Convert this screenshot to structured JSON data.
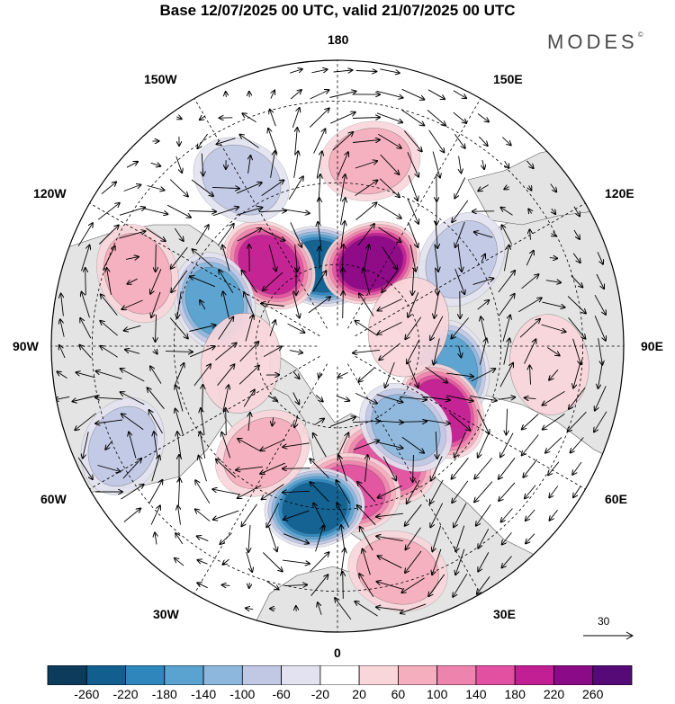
{
  "title": "Base 12/07/2025 00 UTC, valid 21/07/2025 00 UTC",
  "brand": "MODES",
  "brand_mark": "©",
  "longitude_labels": {
    "top": "180",
    "bottom": "0",
    "left": "90W",
    "right": "90E",
    "w150": "150W",
    "w120": "120W",
    "w60": "60W",
    "w30": "30W",
    "e150": "150E",
    "e120": "120E",
    "e60": "60E",
    "e30": "30E"
  },
  "reference_vector": "30",
  "colorbar": {
    "colors": [
      "#0d3b5c",
      "#125f8f",
      "#2e86bd",
      "#5aa2cf",
      "#8db7dc",
      "#c0c8e4",
      "#e3e2f0",
      "#ffffff",
      "#f9d6da",
      "#f4aebd",
      "#ee84ae",
      "#e251a1",
      "#c21f94",
      "#8b0a87",
      "#560a77"
    ],
    "labels": [
      "-260",
      "-220",
      "-180",
      "-140",
      "-100",
      "-60",
      "-20",
      "20",
      "60",
      "100",
      "140",
      "180",
      "220",
      "260"
    ]
  },
  "anomalies": [
    {
      "lon": -168,
      "colat": 20,
      "value": -230
    },
    {
      "lon": 158,
      "colat": 22,
      "value": 245
    },
    {
      "lon": -140,
      "colat": 26,
      "value": 210
    },
    {
      "lon": -110,
      "colat": 32,
      "value": -150
    },
    {
      "lon": -150,
      "colat": 47,
      "value": -80
    },
    {
      "lon": 125,
      "colat": 37,
      "value": -90
    },
    {
      "lon": 78,
      "colat": 28,
      "value": -170
    },
    {
      "lon": 58,
      "colat": 30,
      "value": 190
    },
    {
      "lon": 23,
      "colat": 31,
      "value": 160
    },
    {
      "lon": 5,
      "colat": 36,
      "value": 150
    },
    {
      "lon": -8,
      "colat": 40,
      "value": -220
    },
    {
      "lon": 40,
      "colat": 26,
      "value": -120
    },
    {
      "lon": 85,
      "colat": 52,
      "value": 55
    },
    {
      "lon": -35,
      "colat": 32,
      "value": 80
    },
    {
      "lon": 15,
      "colat": 57,
      "value": 70
    },
    {
      "lon": -65,
      "colat": 58,
      "value": -90
    },
    {
      "lon": -110,
      "colat": 52,
      "value": 60
    },
    {
      "lon": 170,
      "colat": 46,
      "value": 60
    },
    {
      "lon": 105,
      "colat": 18,
      "value": 55
    },
    {
      "lon": -80,
      "colat": 24,
      "value": 45
    }
  ]
}
